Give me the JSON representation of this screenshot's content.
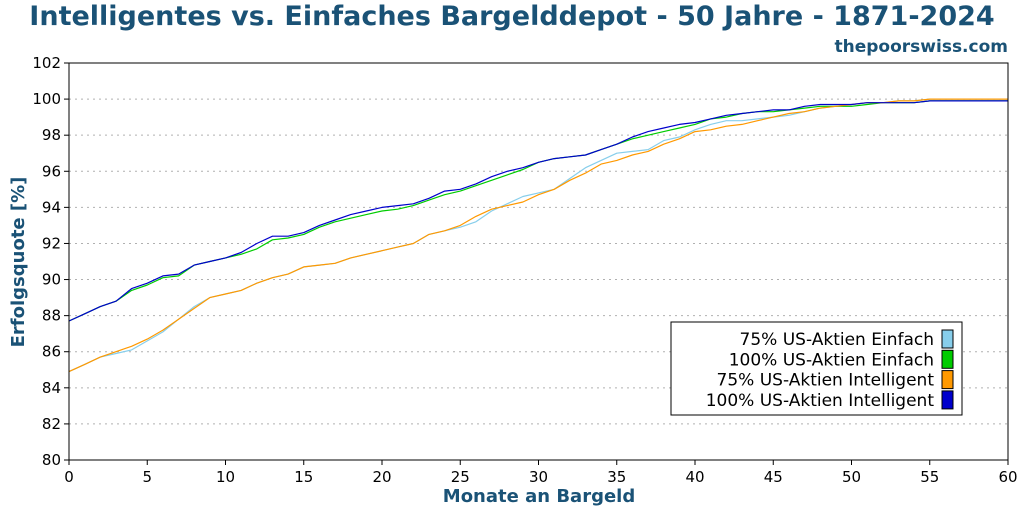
{
  "chart_data": {
    "type": "line",
    "title": "Intelligentes vs. Einfaches Bargelddepot - 50 Jahre - 1871-2024",
    "source": "thepoorswiss.com",
    "xlabel": "Monate an Bargeld",
    "ylabel": "Erfolgsquote [%]",
    "xlim": [
      0,
      60
    ],
    "ylim": [
      80,
      102
    ],
    "xticks": [
      0,
      5,
      10,
      15,
      20,
      25,
      30,
      35,
      40,
      45,
      50,
      55,
      60
    ],
    "yticks": [
      80,
      82,
      84,
      86,
      88,
      90,
      92,
      94,
      96,
      98,
      100,
      102
    ],
    "grid": "horizontal dotted",
    "legend_position": "bottom-right",
    "x": [
      0,
      1,
      2,
      3,
      4,
      5,
      6,
      7,
      8,
      9,
      10,
      11,
      12,
      13,
      14,
      15,
      16,
      17,
      18,
      19,
      20,
      21,
      22,
      23,
      24,
      25,
      26,
      27,
      28,
      29,
      30,
      31,
      32,
      33,
      34,
      35,
      36,
      37,
      38,
      39,
      40,
      41,
      42,
      43,
      44,
      45,
      46,
      47,
      48,
      49,
      50,
      51,
      52,
      53,
      54,
      55,
      56,
      57,
      58,
      59,
      60
    ],
    "series": [
      {
        "name": "75% US-Aktien Einfach",
        "color": "#87ceeb",
        "values": [
          84.9,
          85.3,
          85.7,
          85.9,
          86.1,
          86.6,
          87.1,
          87.8,
          88.5,
          89.0,
          89.2,
          89.4,
          89.8,
          90.1,
          90.3,
          90.7,
          90.8,
          90.9,
          91.2,
          91.4,
          91.6,
          91.8,
          92.0,
          92.5,
          92.7,
          92.9,
          93.2,
          93.8,
          94.2,
          94.6,
          94.8,
          95.0,
          95.6,
          96.2,
          96.6,
          97.0,
          97.1,
          97.2,
          97.7,
          97.9,
          98.3,
          98.6,
          98.8,
          98.8,
          98.9,
          99.0,
          99.1,
          99.3,
          99.5,
          99.6,
          99.7,
          99.8,
          99.8,
          99.9,
          99.9,
          100.0,
          100.0,
          100.0,
          100.0,
          100.0,
          100.0
        ]
      },
      {
        "name": "100% US-Aktien Einfach",
        "color": "#00cc00",
        "values": [
          87.7,
          88.1,
          88.5,
          88.8,
          89.4,
          89.7,
          90.1,
          90.2,
          90.8,
          91.0,
          91.2,
          91.4,
          91.7,
          92.2,
          92.3,
          92.5,
          92.9,
          93.2,
          93.4,
          93.6,
          93.8,
          93.9,
          94.1,
          94.4,
          94.7,
          94.9,
          95.2,
          95.5,
          95.8,
          96.1,
          96.5,
          96.7,
          96.8,
          96.9,
          97.2,
          97.5,
          97.8,
          98.0,
          98.2,
          98.4,
          98.6,
          98.9,
          99.0,
          99.2,
          99.3,
          99.3,
          99.4,
          99.5,
          99.6,
          99.6,
          99.6,
          99.7,
          99.8,
          99.8,
          99.8,
          99.9,
          99.9,
          99.9,
          99.9,
          99.9,
          99.9
        ]
      },
      {
        "name": "75% US-Aktien Intelligent",
        "color": "#ff9900",
        "values": [
          84.9,
          85.3,
          85.7,
          86.0,
          86.3,
          86.7,
          87.2,
          87.8,
          88.4,
          89.0,
          89.2,
          89.4,
          89.8,
          90.1,
          90.3,
          90.7,
          90.8,
          90.9,
          91.2,
          91.4,
          91.6,
          91.8,
          92.0,
          92.5,
          92.7,
          93.0,
          93.5,
          93.9,
          94.1,
          94.3,
          94.7,
          95.0,
          95.5,
          95.9,
          96.4,
          96.6,
          96.9,
          97.1,
          97.5,
          97.8,
          98.2,
          98.3,
          98.5,
          98.6,
          98.8,
          99.0,
          99.2,
          99.3,
          99.5,
          99.6,
          99.7,
          99.8,
          99.8,
          99.9,
          99.9,
          100.0,
          100.0,
          100.0,
          100.0,
          100.0,
          100.0
        ]
      },
      {
        "name": "100% US-Aktien Intelligent",
        "color": "#0000cc",
        "values": [
          87.7,
          88.1,
          88.5,
          88.8,
          89.5,
          89.8,
          90.2,
          90.3,
          90.8,
          91.0,
          91.2,
          91.5,
          92.0,
          92.4,
          92.4,
          92.6,
          93.0,
          93.3,
          93.6,
          93.8,
          94.0,
          94.1,
          94.2,
          94.5,
          94.9,
          95.0,
          95.3,
          95.7,
          96.0,
          96.2,
          96.5,
          96.7,
          96.8,
          96.9,
          97.2,
          97.5,
          97.9,
          98.2,
          98.4,
          98.6,
          98.7,
          98.9,
          99.1,
          99.2,
          99.3,
          99.4,
          99.4,
          99.6,
          99.7,
          99.7,
          99.7,
          99.8,
          99.8,
          99.8,
          99.8,
          99.9,
          99.9,
          99.9,
          99.9,
          99.9,
          99.9
        ]
      }
    ]
  }
}
